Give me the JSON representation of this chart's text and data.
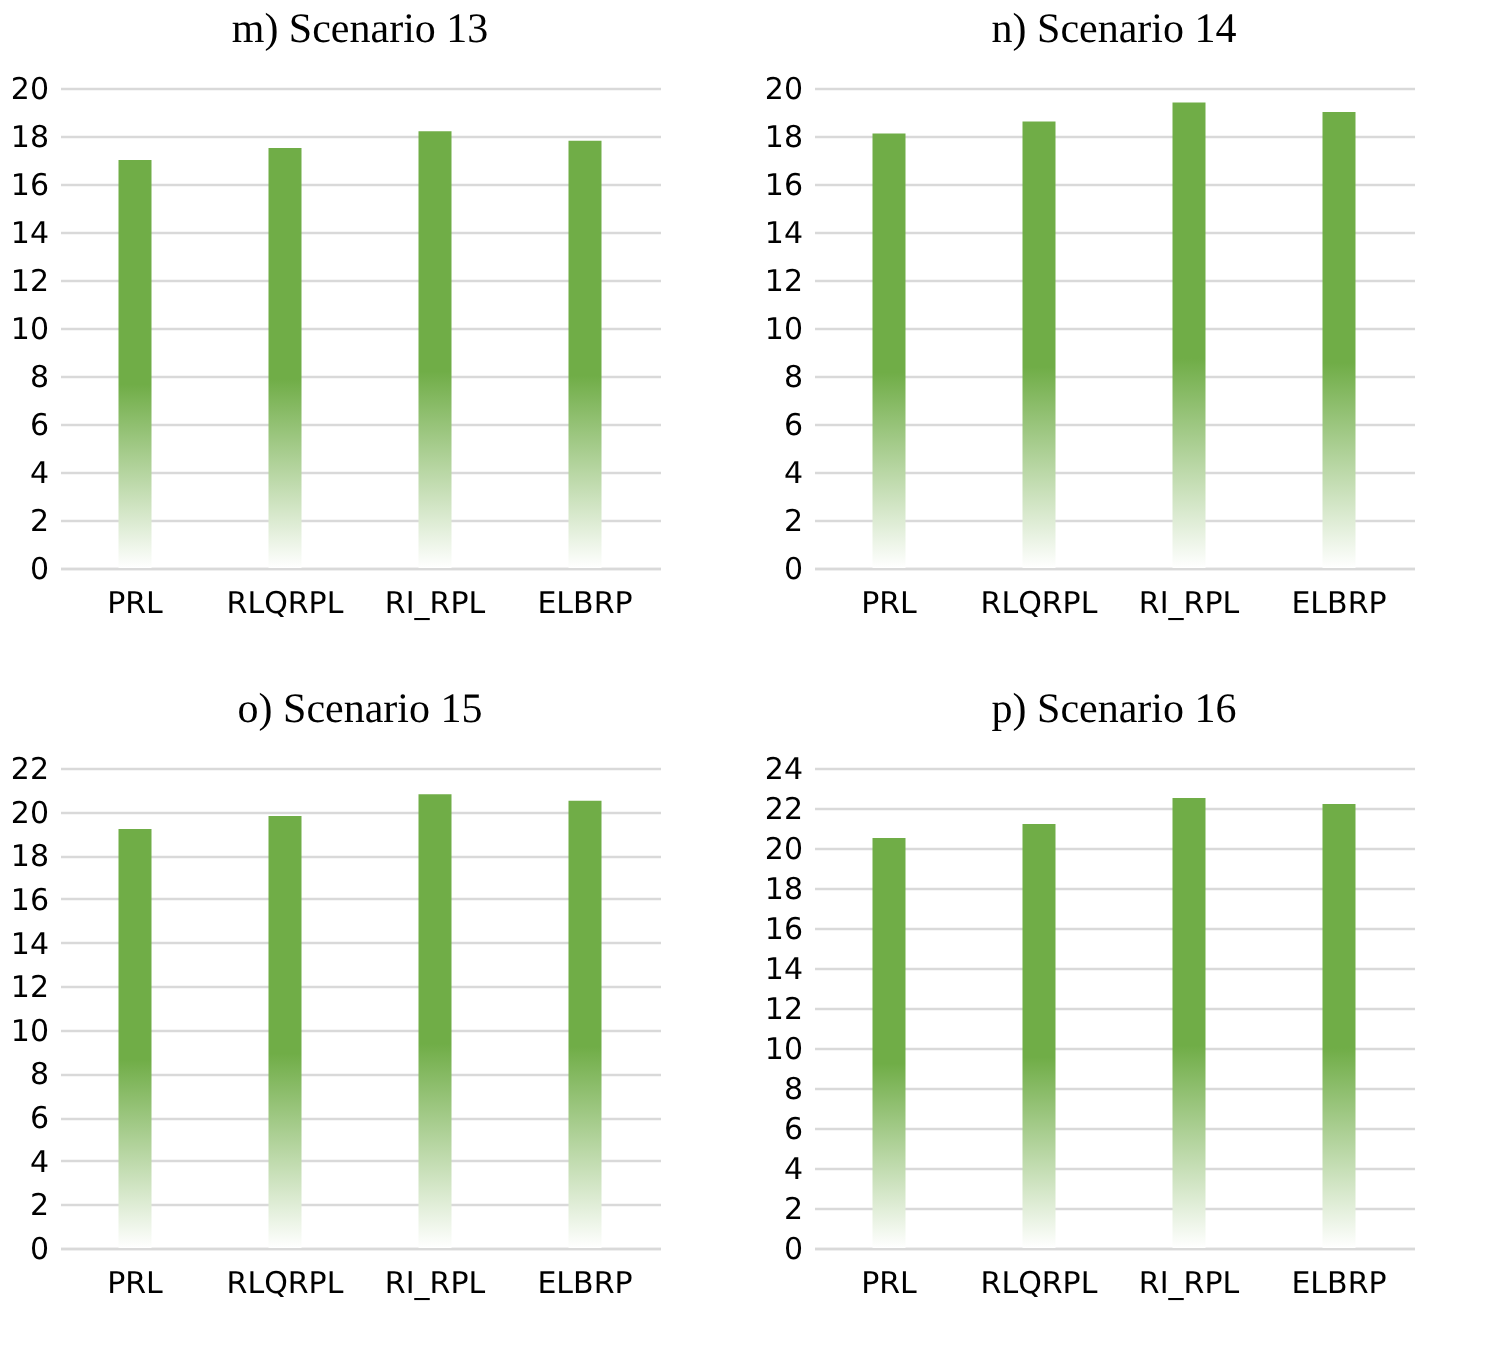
{
  "chart_data": [
    {
      "type": "bar",
      "title": "m) Scenario 13",
      "categories": [
        "PRL",
        "RLQRPL",
        "RI_RPL",
        "ELBRP"
      ],
      "values": [
        17.0,
        17.5,
        18.2,
        17.8
      ],
      "color": "#70ad47",
      "ylim": [
        0,
        20
      ],
      "yticks": [
        0,
        2,
        4,
        6,
        8,
        10,
        12,
        14,
        16,
        18,
        20
      ],
      "grid": "y"
    },
    {
      "type": "bar",
      "title": "n) Scenario 14",
      "categories": [
        "PRL",
        "RLQRPL",
        "RI_RPL",
        "ELBRP"
      ],
      "values": [
        18.1,
        18.6,
        19.4,
        19.0
      ],
      "color": "#70ad47",
      "ylim": [
        0,
        20
      ],
      "yticks": [
        0,
        2,
        4,
        6,
        8,
        10,
        12,
        14,
        16,
        18,
        20
      ],
      "grid": "y"
    },
    {
      "type": "bar",
      "title": "o) Scenario 15",
      "categories": [
        "PRL",
        "RLQRPL",
        "RI_RPL",
        "ELBRP"
      ],
      "values": [
        19.2,
        19.8,
        20.8,
        20.5
      ],
      "color": "#70ad47",
      "ylim": [
        0,
        22
      ],
      "yticks": [
        0,
        2,
        4,
        6,
        8,
        10,
        12,
        14,
        16,
        18,
        20,
        22
      ],
      "grid": "y"
    },
    {
      "type": "bar",
      "title": "p) Scenario 16",
      "categories": [
        "PRL",
        "RLQRPL",
        "RI_RPL",
        "ELBRP"
      ],
      "values": [
        20.5,
        21.2,
        22.5,
        22.2
      ],
      "color": "#70ad47",
      "ylim": [
        0,
        24
      ],
      "yticks": [
        0,
        2,
        4,
        6,
        8,
        10,
        12,
        14,
        16,
        18,
        20,
        22,
        24
      ],
      "grid": "y"
    }
  ]
}
